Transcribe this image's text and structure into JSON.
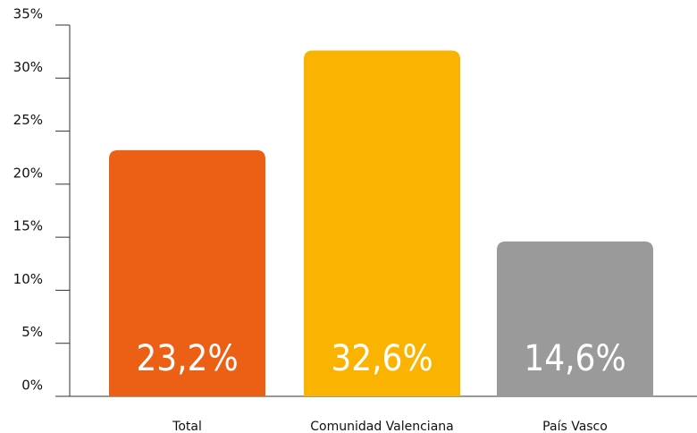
{
  "chart_data": {
    "type": "bar",
    "categories": [
      "Total",
      "Comunidad Valenciana",
      "País Vasco"
    ],
    "values": [
      23.2,
      32.6,
      14.6
    ],
    "value_labels": [
      "23,2%",
      "32,6%",
      "14,6%"
    ],
    "colors": [
      "#ec6016",
      "#f9b300",
      "#9a9a9a"
    ],
    "ylim": [
      0,
      35
    ],
    "yticks": [
      {
        "value": 0,
        "label": "0%"
      },
      {
        "value": 5,
        "label": "5%"
      },
      {
        "value": 10,
        "label": "10%"
      },
      {
        "value": 15,
        "label": "15%"
      },
      {
        "value": 20,
        "label": "20%"
      },
      {
        "value": 25,
        "label": "25%"
      },
      {
        "value": 30,
        "label": "30%"
      },
      {
        "value": 35,
        "label": "35%"
      }
    ]
  }
}
